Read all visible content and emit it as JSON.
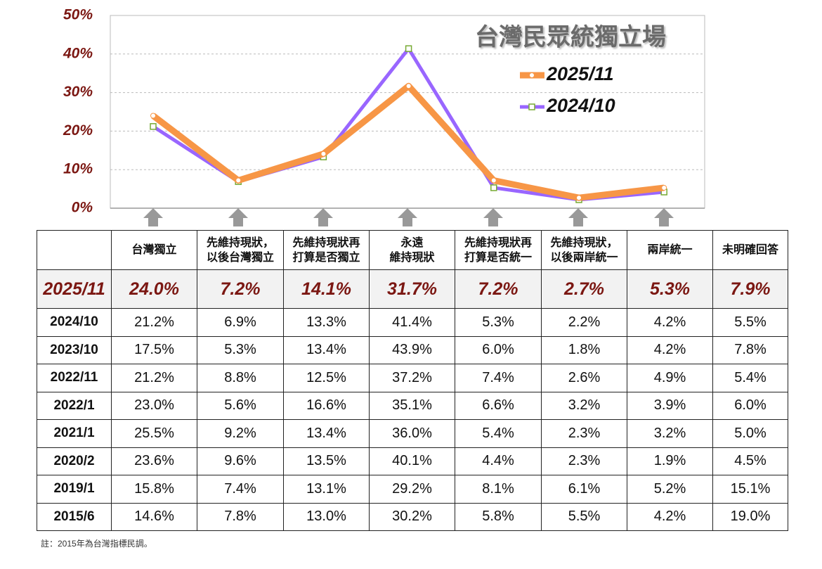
{
  "chart_data": {
    "type": "line",
    "title": "台灣民眾統獨立場",
    "categories": [
      null,
      null,
      null,
      null,
      null,
      null,
      null
    ],
    "series": [
      {
        "name": "2025/11",
        "color": "#f79646",
        "values": [
          24.0,
          7.2,
          14.1,
          31.7,
          7.2,
          2.7,
          5.3
        ]
      },
      {
        "name": "2024/10",
        "color": "#9966ff",
        "values": [
          21.2,
          6.9,
          13.3,
          41.4,
          5.3,
          2.2,
          4.2
        ]
      }
    ],
    "ylim": [
      0,
      50
    ],
    "yticks": [
      {
        "value": 0,
        "label": "0%"
      },
      {
        "value": 10,
        "label": "10%"
      },
      {
        "value": 20,
        "label": "20%"
      },
      {
        "value": 30,
        "label": "30%"
      },
      {
        "value": 40,
        "label": "40%"
      },
      {
        "value": 50,
        "label": "50%"
      }
    ],
    "grid": true
  },
  "table": {
    "header": [
      [
        "台灣獨立"
      ],
      [
        "先維持現狀，",
        "以後台灣獨立"
      ],
      [
        "先維持現狀再",
        "打算是否獨立"
      ],
      [
        "永遠",
        "維持現狀"
      ],
      [
        "先維持現狀再",
        "打算是否統一"
      ],
      [
        "先維持現狀，",
        "以後兩岸統一"
      ],
      [
        "兩岸統一"
      ],
      [
        "未明確回答"
      ]
    ],
    "rows": [
      {
        "label": "2025/11",
        "cells": [
          "24.0%",
          "7.2%",
          "14.1%",
          "31.7%",
          "7.2%",
          "2.7%",
          "5.3%",
          "7.9%"
        ]
      },
      {
        "label": "2024/10",
        "cells": [
          "21.2%",
          "6.9%",
          "13.3%",
          "41.4%",
          "5.3%",
          "2.2%",
          "4.2%",
          "5.5%"
        ]
      },
      {
        "label": "2023/10",
        "cells": [
          "17.5%",
          "5.3%",
          "13.4%",
          "43.9%",
          "6.0%",
          "1.8%",
          "4.2%",
          "7.8%"
        ]
      },
      {
        "label": "2022/11",
        "cells": [
          "21.2%",
          "8.8%",
          "12.5%",
          "37.2%",
          "7.4%",
          "2.6%",
          "4.9%",
          "5.4%"
        ]
      },
      {
        "label": "2022/1",
        "cells": [
          "23.0%",
          "5.6%",
          "16.6%",
          "35.1%",
          "6.6%",
          "3.2%",
          "3.9%",
          "6.0%"
        ]
      },
      {
        "label": "2021/1",
        "cells": [
          "25.5%",
          "9.2%",
          "13.4%",
          "36.0%",
          "5.4%",
          "2.3%",
          "3.2%",
          "5.0%"
        ]
      },
      {
        "label": "2020/2",
        "cells": [
          "23.6%",
          "9.6%",
          "13.5%",
          "40.1%",
          "4.4%",
          "2.3%",
          "1.9%",
          "4.5%"
        ]
      },
      {
        "label": "2019/1",
        "cells": [
          "15.8%",
          "7.4%",
          "13.1%",
          "29.2%",
          "8.1%",
          "6.1%",
          "5.2%",
          "15.1%"
        ]
      },
      {
        "label": "2015/6",
        "cells": [
          "14.6%",
          "7.8%",
          "13.0%",
          "30.2%",
          "5.8%",
          "5.5%",
          "4.2%",
          "19.0%"
        ]
      }
    ]
  },
  "footnote": "註：2015年為台灣指標民調。"
}
